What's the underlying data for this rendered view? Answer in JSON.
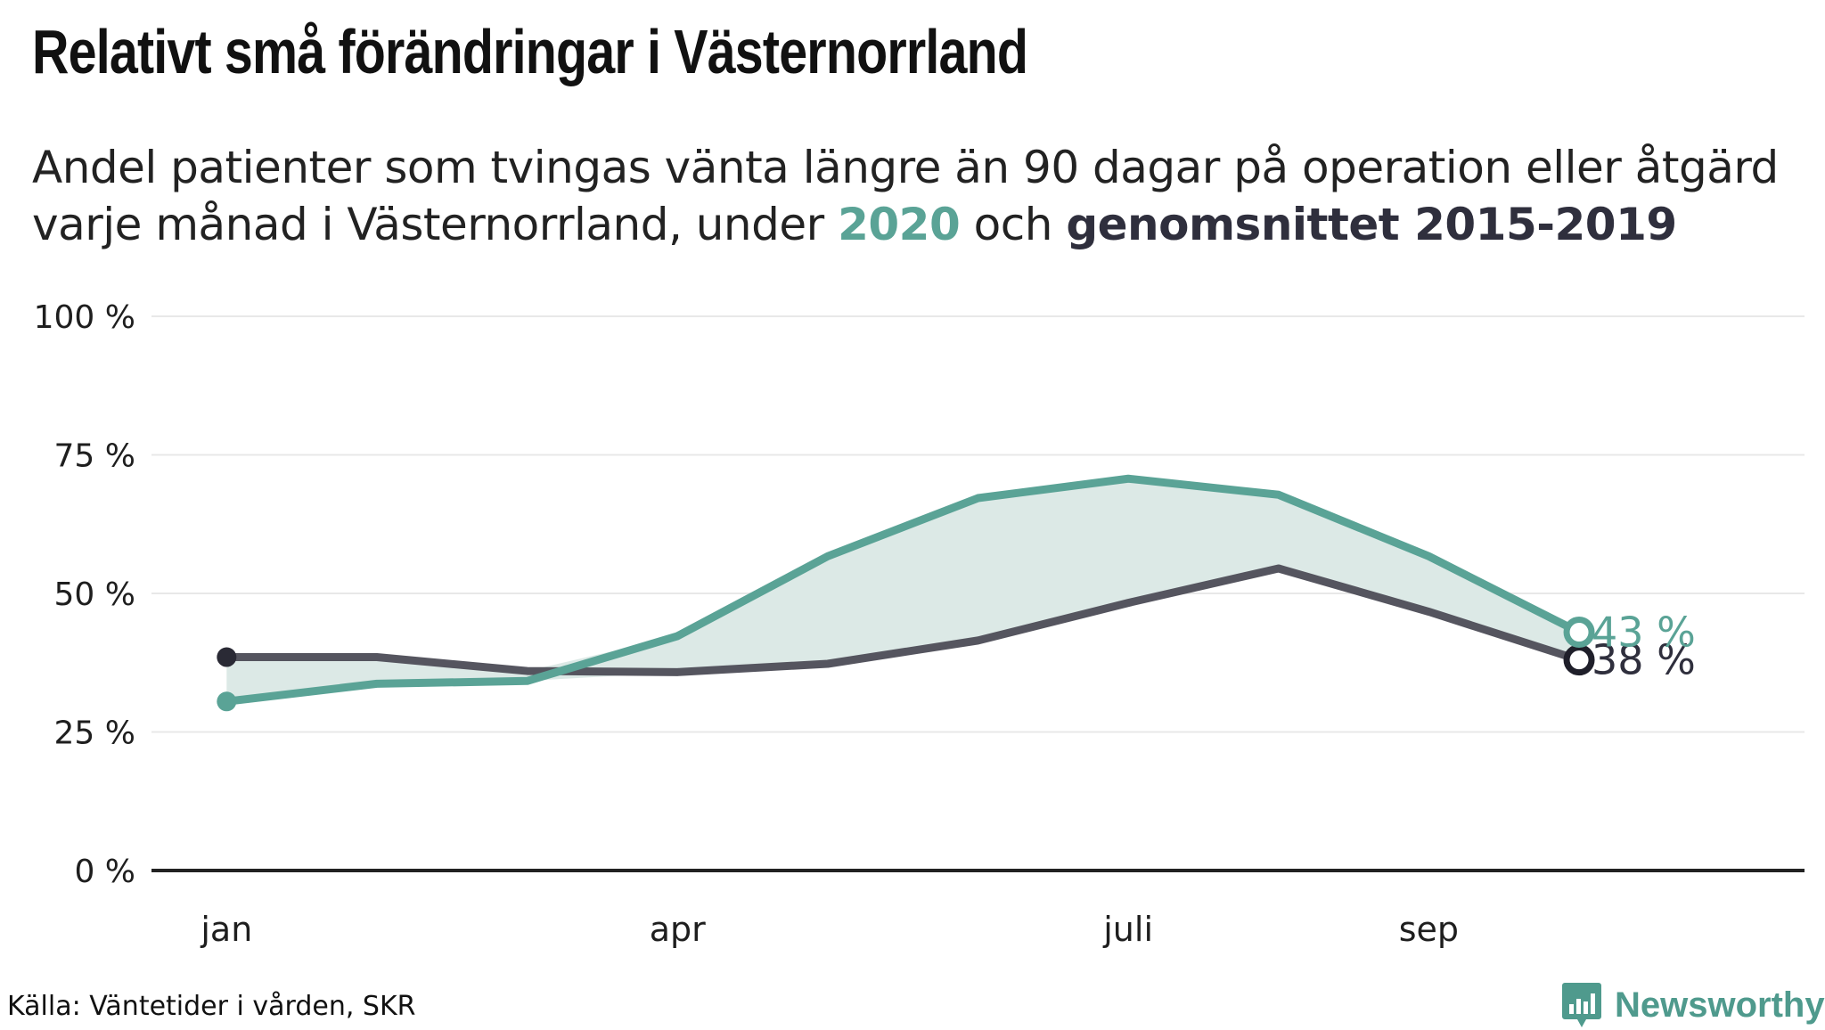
{
  "title": "Relativt små förändringar i Västernorrland",
  "subtitle": {
    "line1": "Andel patienter som tvingas vänta längre än 90 dagar på operation eller åtgärd",
    "line2_pre": "varje månad i Västernorrland, under ",
    "highlight_2020": "2020",
    "line2_mid": " och ",
    "highlight_avg": "genomsnittet 2015-2019"
  },
  "source": "Källa: Väntetider i vården, SKR",
  "logo": {
    "text": "Newsworthy",
    "icon": "bar-chart-icon"
  },
  "colors": {
    "series_2020": "#5aa396",
    "series_avg": "#55555f",
    "band": "#dce9e6",
    "axis": "#222222",
    "grid": "#e8e8e8"
  },
  "chart_data": {
    "type": "line",
    "x": [
      1,
      2,
      3,
      4,
      5,
      6,
      7,
      8,
      9,
      10
    ],
    "x_tick_labels": [
      {
        "x": 1,
        "label": "jan"
      },
      {
        "x": 4,
        "label": "apr"
      },
      {
        "x": 7,
        "label": "juli"
      },
      {
        "x": 9,
        "label": "sep"
      }
    ],
    "y_ticks": [
      0,
      25,
      50,
      75,
      100
    ],
    "y_tick_labels": [
      "0 %",
      "25 %",
      "50 %",
      "75 %",
      "100 %"
    ],
    "ylim": [
      0,
      100
    ],
    "xlim": [
      0.5,
      11.5
    ],
    "grid": true,
    "series": [
      {
        "name": "2020",
        "values": [
          30.5,
          33.7,
          34.2,
          42.3,
          56.7,
          67.2,
          70.7,
          67.8,
          56.7,
          43.0
        ],
        "end_label": "43 %"
      },
      {
        "name": "genomsnittet 2015-2019",
        "values": [
          38.5,
          38.5,
          36.0,
          35.8,
          37.3,
          41.5,
          48.3,
          54.5,
          46.7,
          38.0
        ],
        "end_label": "38 %"
      }
    ]
  }
}
